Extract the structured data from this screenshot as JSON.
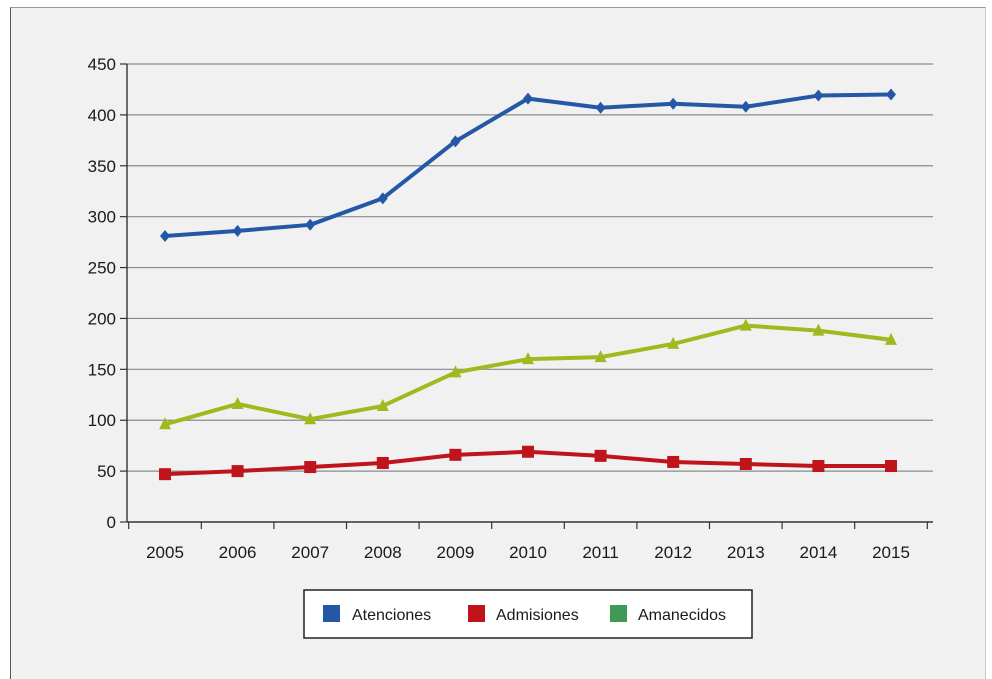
{
  "chart_data": {
    "type": "line",
    "title": "",
    "xlabel": "",
    "ylabel": "",
    "categories": [
      "2005",
      "2006",
      "2007",
      "2008",
      "2009",
      "2010",
      "2011",
      "2012",
      "2013",
      "2014",
      "2015"
    ],
    "ylim": [
      0,
      450
    ],
    "yticks": [
      0,
      50,
      100,
      150,
      200,
      250,
      300,
      350,
      400,
      450
    ],
    "grid": true,
    "legend_position": "bottom",
    "series": [
      {
        "name": "Atenciones",
        "color": "#2458a6",
        "marker": "diamond",
        "values": [
          281,
          286,
          292,
          318,
          374,
          416,
          407,
          411,
          408,
          419,
          420
        ]
      },
      {
        "name": "Admisiones",
        "color": "#c0141c",
        "marker": "square",
        "values": [
          47,
          50,
          54,
          58,
          66,
          69,
          65,
          59,
          57,
          55,
          55
        ]
      },
      {
        "name": "Amanecidos",
        "color": "#9dba1e",
        "marker": "triangle",
        "legend_color": "#3e9a55",
        "values": [
          96,
          116,
          101,
          114,
          147,
          160,
          162,
          175,
          193,
          188,
          179
        ]
      }
    ]
  }
}
